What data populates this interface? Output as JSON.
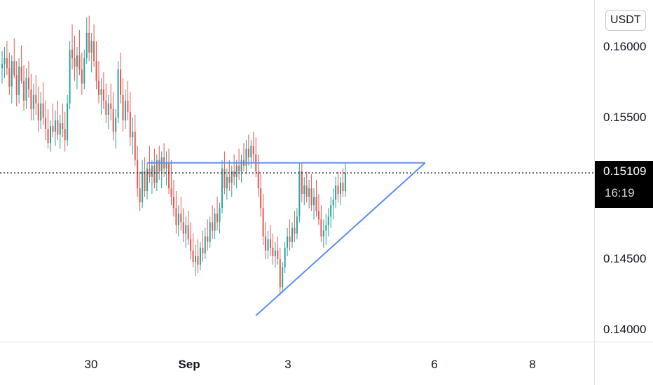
{
  "chart_data": {
    "type": "candlestick",
    "currency": "USDT",
    "y_axis": {
      "ticks": [
        "0.16000",
        "0.15500",
        "0.14500",
        "0.14000"
      ],
      "range": [
        0.1395,
        0.1622
      ]
    },
    "x_axis": {
      "ticks": [
        {
          "label": "30",
          "bold": false
        },
        {
          "label": "Sep",
          "bold": true
        },
        {
          "label": "3",
          "bold": false
        },
        {
          "label": "6",
          "bold": false
        },
        {
          "label": "8",
          "bold": false
        }
      ]
    },
    "last_price": {
      "value": "0.15109",
      "countdown": "16:19",
      "numeric": 0.15109
    },
    "colors": {
      "up": "#26a69a",
      "down": "#ef5350",
      "trendline": "#5b8def",
      "price_line": "#131722"
    },
    "trendlines": [
      {
        "name": "resistance",
        "from": {
          "bar": 60,
          "price": 0.1518
        },
        "to": {
          "bar": 175,
          "price": 0.1518
        }
      },
      {
        "name": "support",
        "from": {
          "bar": 105,
          "price": 0.141
        },
        "to": {
          "bar": 175,
          "price": 0.1518
        }
      }
    ],
    "candles": [
      [
        0.1585,
        0.1597,
        0.1574,
        0.1588
      ],
      [
        0.1588,
        0.16,
        0.1578,
        0.1592
      ],
      [
        0.1592,
        0.1604,
        0.158,
        0.1585
      ],
      [
        0.1585,
        0.1596,
        0.1566,
        0.1572
      ],
      [
        0.1572,
        0.1594,
        0.156,
        0.159
      ],
      [
        0.159,
        0.1606,
        0.1578,
        0.158
      ],
      [
        0.158,
        0.159,
        0.1558,
        0.1566
      ],
      [
        0.1566,
        0.1592,
        0.156,
        0.1586
      ],
      [
        0.1586,
        0.1601,
        0.1574,
        0.1576
      ],
      [
        0.1576,
        0.1587,
        0.1555,
        0.1562
      ],
      [
        0.1562,
        0.1585,
        0.1556,
        0.1578
      ],
      [
        0.1578,
        0.159,
        0.1564,
        0.157
      ],
      [
        0.157,
        0.1581,
        0.1548,
        0.1556
      ],
      [
        0.1556,
        0.1574,
        0.1548,
        0.1566
      ],
      [
        0.1566,
        0.158,
        0.1552,
        0.156
      ],
      [
        0.156,
        0.1572,
        0.154,
        0.1548
      ],
      [
        0.1548,
        0.1568,
        0.1542,
        0.156
      ],
      [
        0.156,
        0.1575,
        0.1545,
        0.155
      ],
      [
        0.155,
        0.1562,
        0.1534,
        0.1542
      ],
      [
        0.1542,
        0.1556,
        0.1528,
        0.1532
      ],
      [
        0.1532,
        0.1548,
        0.1526,
        0.1544
      ],
      [
        0.1544,
        0.156,
        0.1536,
        0.154
      ],
      [
        0.154,
        0.1555,
        0.153,
        0.1548
      ],
      [
        0.1548,
        0.1562,
        0.1534,
        0.1538
      ],
      [
        0.1538,
        0.1552,
        0.1528,
        0.1546
      ],
      [
        0.1546,
        0.156,
        0.1536,
        0.1542
      ],
      [
        0.1542,
        0.1554,
        0.1526,
        0.1534
      ],
      [
        0.1534,
        0.1566,
        0.153,
        0.156
      ],
      [
        0.156,
        0.1604,
        0.1556,
        0.1598
      ],
      [
        0.1598,
        0.1616,
        0.1584,
        0.1592
      ],
      [
        0.1592,
        0.1608,
        0.1576,
        0.1586
      ],
      [
        0.1586,
        0.16,
        0.157,
        0.1594
      ],
      [
        0.1594,
        0.1612,
        0.158,
        0.1584
      ],
      [
        0.1584,
        0.1596,
        0.1566,
        0.1574
      ],
      [
        0.1574,
        0.1598,
        0.157,
        0.1592
      ],
      [
        0.1592,
        0.1621,
        0.1588,
        0.161
      ],
      [
        0.161,
        0.1622,
        0.159,
        0.1596
      ],
      [
        0.1596,
        0.161,
        0.1582,
        0.1604
      ],
      [
        0.1604,
        0.1616,
        0.1586,
        0.159
      ],
      [
        0.159,
        0.1604,
        0.157,
        0.1576
      ],
      [
        0.1576,
        0.159,
        0.156,
        0.1566
      ],
      [
        0.1566,
        0.1578,
        0.1552,
        0.157
      ],
      [
        0.157,
        0.1582,
        0.1556,
        0.1562
      ],
      [
        0.1562,
        0.1574,
        0.1546,
        0.1552
      ],
      [
        0.1552,
        0.1566,
        0.1542,
        0.156
      ],
      [
        0.156,
        0.1574,
        0.1548,
        0.1556
      ],
      [
        0.1556,
        0.1568,
        0.1534,
        0.154
      ],
      [
        0.154,
        0.1556,
        0.1528,
        0.155
      ],
      [
        0.155,
        0.159,
        0.1546,
        0.1584
      ],
      [
        0.1584,
        0.1596,
        0.156,
        0.1566
      ],
      [
        0.1566,
        0.1578,
        0.154,
        0.1548
      ],
      [
        0.1548,
        0.157,
        0.1542,
        0.1562
      ],
      [
        0.1562,
        0.1576,
        0.1548,
        0.1554
      ],
      [
        0.1554,
        0.1568,
        0.153,
        0.1536
      ],
      [
        0.1536,
        0.155,
        0.1524,
        0.154
      ],
      [
        0.154,
        0.1552,
        0.1516,
        0.152
      ],
      [
        0.152,
        0.153,
        0.1494,
        0.15
      ],
      [
        0.15,
        0.1512,
        0.1484,
        0.149
      ],
      [
        0.149,
        0.152,
        0.1486,
        0.1512
      ],
      [
        0.1512,
        0.1522,
        0.1494,
        0.1498
      ],
      [
        0.1498,
        0.1518,
        0.1492,
        0.1514
      ],
      [
        0.1514,
        0.153,
        0.1504,
        0.1508
      ],
      [
        0.1508,
        0.152,
        0.1496,
        0.1516
      ],
      [
        0.1516,
        0.1528,
        0.15,
        0.1504
      ],
      [
        0.1504,
        0.1524,
        0.1498,
        0.152
      ],
      [
        0.152,
        0.153,
        0.1506,
        0.1512
      ],
      [
        0.1512,
        0.1526,
        0.15,
        0.1522
      ],
      [
        0.1522,
        0.1532,
        0.1508,
        0.1514
      ],
      [
        0.1514,
        0.1526,
        0.1502,
        0.1518
      ],
      [
        0.1518,
        0.1528,
        0.1496,
        0.15
      ],
      [
        0.15,
        0.152,
        0.1488,
        0.1494
      ],
      [
        0.1494,
        0.1506,
        0.148,
        0.1486
      ],
      [
        0.1486,
        0.1498,
        0.1468,
        0.1474
      ],
      [
        0.1474,
        0.1488,
        0.1466,
        0.1482
      ],
      [
        0.1482,
        0.1494,
        0.147,
        0.1476
      ],
      [
        0.1476,
        0.1486,
        0.1462,
        0.1468
      ],
      [
        0.1468,
        0.148,
        0.1458,
        0.1474
      ],
      [
        0.1474,
        0.1484,
        0.146,
        0.1464
      ],
      [
        0.1464,
        0.1476,
        0.145,
        0.1456
      ],
      [
        0.1456,
        0.1468,
        0.1444,
        0.1448
      ],
      [
        0.1448,
        0.146,
        0.1438,
        0.1452
      ],
      [
        0.1452,
        0.1464,
        0.144,
        0.1446
      ],
      [
        0.1446,
        0.1462,
        0.1442,
        0.1458
      ],
      [
        0.1458,
        0.147,
        0.1448,
        0.1454
      ],
      [
        0.1454,
        0.1472,
        0.145,
        0.1466
      ],
      [
        0.1466,
        0.1478,
        0.1456,
        0.1462
      ],
      [
        0.1462,
        0.148,
        0.1458,
        0.1476
      ],
      [
        0.1476,
        0.1488,
        0.1464,
        0.147
      ],
      [
        0.147,
        0.1486,
        0.1464,
        0.1482
      ],
      [
        0.1482,
        0.1494,
        0.147,
        0.1476
      ],
      [
        0.1476,
        0.149,
        0.1468,
        0.1486
      ],
      [
        0.1486,
        0.152,
        0.1482,
        0.1514
      ],
      [
        0.1514,
        0.1526,
        0.1496,
        0.15
      ],
      [
        0.15,
        0.1514,
        0.1492,
        0.1508
      ],
      [
        0.1508,
        0.152,
        0.1498,
        0.1504
      ],
      [
        0.1504,
        0.1516,
        0.1494,
        0.1512
      ],
      [
        0.1512,
        0.1524,
        0.1502,
        0.1508
      ],
      [
        0.1508,
        0.152,
        0.15,
        0.1516
      ],
      [
        0.1516,
        0.1528,
        0.1506,
        0.1512
      ],
      [
        0.1512,
        0.1524,
        0.1504,
        0.152
      ],
      [
        0.152,
        0.1532,
        0.1512,
        0.1516
      ],
      [
        0.1516,
        0.1534,
        0.151,
        0.1528
      ],
      [
        0.1528,
        0.1538,
        0.1516,
        0.1522
      ],
      [
        0.1522,
        0.1534,
        0.1514,
        0.153
      ],
      [
        0.153,
        0.154,
        0.1518,
        0.1524
      ],
      [
        0.1524,
        0.1536,
        0.1508,
        0.1512
      ],
      [
        0.1512,
        0.1524,
        0.1494,
        0.15
      ],
      [
        0.15,
        0.151,
        0.148,
        0.1486
      ],
      [
        0.1486,
        0.1496,
        0.146,
        0.1466
      ],
      [
        0.1466,
        0.1476,
        0.145,
        0.1456
      ],
      [
        0.1456,
        0.147,
        0.145,
        0.1464
      ],
      [
        0.1464,
        0.1474,
        0.1452,
        0.1458
      ],
      [
        0.1458,
        0.1468,
        0.1446,
        0.1452
      ],
      [
        0.1452,
        0.1462,
        0.1444,
        0.1456
      ],
      [
        0.1456,
        0.1466,
        0.1446,
        0.145
      ],
      [
        0.145,
        0.1458,
        0.1424,
        0.143
      ],
      [
        0.143,
        0.1448,
        0.1426,
        0.1444
      ],
      [
        0.1444,
        0.1462,
        0.144,
        0.1458
      ],
      [
        0.1458,
        0.1472,
        0.1452,
        0.1466
      ],
      [
        0.1466,
        0.1478,
        0.1456,
        0.1462
      ],
      [
        0.1462,
        0.1476,
        0.1458,
        0.1472
      ],
      [
        0.1472,
        0.1484,
        0.1462,
        0.1468
      ],
      [
        0.1468,
        0.1486,
        0.1464,
        0.148
      ],
      [
        0.148,
        0.1518,
        0.1476,
        0.1512
      ],
      [
        0.1512,
        0.1518,
        0.149,
        0.1496
      ],
      [
        0.1496,
        0.1508,
        0.1488,
        0.1502
      ],
      [
        0.1502,
        0.1512,
        0.149,
        0.1494
      ],
      [
        0.1494,
        0.1506,
        0.1486,
        0.15
      ],
      [
        0.15,
        0.151,
        0.1484,
        0.1488
      ],
      [
        0.1488,
        0.15,
        0.1478,
        0.1494
      ],
      [
        0.1494,
        0.1506,
        0.148,
        0.1484
      ],
      [
        0.1484,
        0.1496,
        0.1474,
        0.1478
      ],
      [
        0.1478,
        0.1488,
        0.1462,
        0.1466
      ],
      [
        0.1466,
        0.1478,
        0.1458,
        0.147
      ],
      [
        0.147,
        0.1482,
        0.146,
        0.1474
      ],
      [
        0.1474,
        0.1486,
        0.1466,
        0.148
      ],
      [
        0.148,
        0.1494,
        0.1472,
        0.1488
      ],
      [
        0.1488,
        0.15,
        0.1478,
        0.1492
      ],
      [
        0.1492,
        0.1508,
        0.1486,
        0.1502
      ],
      [
        0.1502,
        0.1512,
        0.149,
        0.1496
      ],
      [
        0.1496,
        0.1508,
        0.1488,
        0.1504
      ],
      [
        0.1504,
        0.1514,
        0.1494,
        0.1498
      ],
      [
        0.1498,
        0.1518,
        0.1494,
        0.1511
      ]
    ]
  }
}
